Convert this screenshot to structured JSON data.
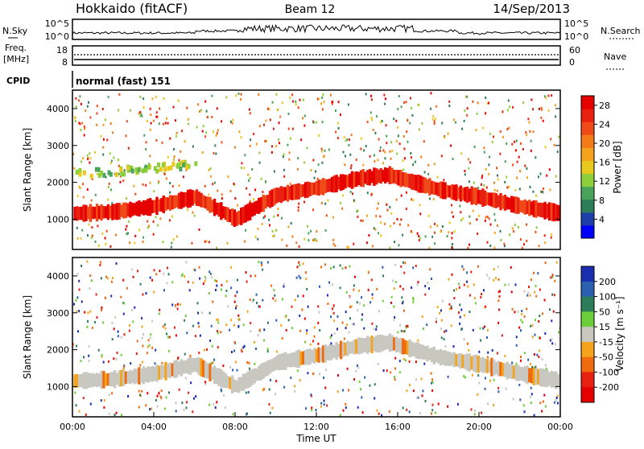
{
  "header": {
    "station": "Hokkaido (fitACF)",
    "beam": "Beam 12",
    "date": "14/Sep/2013"
  },
  "summary_panels": {
    "nsky": {
      "label": "N.Sky",
      "ymax_label": "10^5",
      "ymin_label": "10^0"
    },
    "nsearch": {
      "label": "N.Search",
      "ymax_label": "10^5",
      "ymin_label": "10^0"
    },
    "freq": {
      "label_line1": "Freq.",
      "label_line2": "[MHz]",
      "ymax_label": "18",
      "ymin_label": "8"
    },
    "nave": {
      "label": "Nave",
      "ymax_label": "60",
      "ymin_label": "0"
    },
    "cpid": {
      "label": "CPID",
      "text": "normal (fast) 151"
    }
  },
  "chart_data": [
    {
      "type": "heatmap",
      "title": "",
      "xlabel": "",
      "ylabel": "Slant Range [km]",
      "x_range_hours": [
        0,
        24
      ],
      "ylim": [
        180,
        4500
      ],
      "yticks": [
        1000,
        2000,
        3000,
        4000
      ],
      "colorbar": {
        "label": "Power [dB]",
        "ticks": [
          4,
          8,
          12,
          16,
          20,
          24,
          28
        ],
        "range": [
          0,
          30
        ],
        "colors": [
          "#0000ff",
          "#1f3fa8",
          "#2e7d5a",
          "#4aa35a",
          "#8ccf3a",
          "#e8c81c",
          "#f5a31a",
          "#f47a1a",
          "#f04a18",
          "#e82010",
          "#e60000"
        ]
      },
      "features": [
        {
          "name": "main echo band",
          "x_hours": [
            0,
            2,
            4,
            6,
            8,
            10,
            12,
            14,
            15.5,
            18,
            20,
            22,
            24
          ],
          "range_km": [
            1150,
            1200,
            1350,
            1600,
            1000,
            1650,
            1850,
            2100,
            2200,
            1800,
            1600,
            1350,
            1150
          ],
          "dominant_power_db": 28
        },
        {
          "name": "upper scatter band",
          "x_hours": [
            0,
            2,
            4,
            6
          ],
          "range_km": [
            2300,
            2350,
            2450,
            2550
          ],
          "dominant_power_db": 14
        }
      ]
    },
    {
      "type": "heatmap",
      "title": "",
      "xlabel": "Time UT",
      "ylabel": "Slant Range [km]",
      "x_range_hours": [
        0,
        24
      ],
      "ylim": [
        180,
        4500
      ],
      "yticks": [
        1000,
        2000,
        3000,
        4000
      ],
      "xticks": [
        "00:00",
        "04:00",
        "08:00",
        "12:00",
        "16:00",
        "20:00",
        "00:00"
      ],
      "colorbar": {
        "label": "Velocity [m s⁻¹]",
        "ticks": [
          200,
          100,
          50,
          15,
          -15,
          -50,
          -100,
          -200
        ],
        "colors": [
          "#1a2fb0",
          "#2b5fb0",
          "#2e7d5a",
          "#6ccf3a",
          "#c8c8c0",
          "#f5a31a",
          "#f06a10",
          "#e82010",
          "#e60000"
        ]
      },
      "features": [
        {
          "name": "ground scatter band",
          "x_hours": [
            0,
            2,
            4,
            6,
            8,
            10,
            12,
            14,
            15.5,
            18,
            20,
            22,
            24
          ],
          "range_km": [
            1150,
            1200,
            1350,
            1600,
            1000,
            1650,
            1850,
            2100,
            2200,
            1800,
            1600,
            1350,
            1150
          ],
          "dominant_velocity": "-15..15"
        }
      ]
    }
  ],
  "colors": {
    "grey_scatter": "#c8c8c0",
    "frame": "#000000"
  }
}
